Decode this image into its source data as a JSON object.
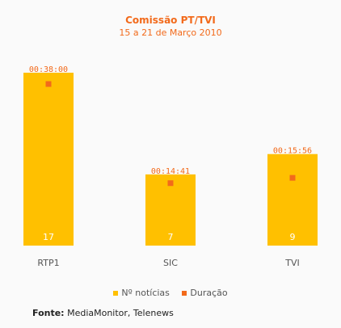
{
  "chart_data": {
    "type": "bar",
    "title": "Comissão PT/TVI",
    "subtitle": "15 a 21 de Março 2010",
    "categories": [
      "RTP1",
      "SIC",
      "TVI"
    ],
    "series": [
      {
        "name": "Nº notícias",
        "values": [
          17,
          7,
          9
        ],
        "color": "#ffc000"
      },
      {
        "name": "Duração",
        "values": [
          "00:38:00",
          "00:14:41",
          "00:15:56"
        ],
        "color": "#f26a1b"
      }
    ],
    "legend_position": "bottom",
    "grid": false
  },
  "source": {
    "label": "Fonte:",
    "text": " MediaMonitor, Telenews"
  }
}
